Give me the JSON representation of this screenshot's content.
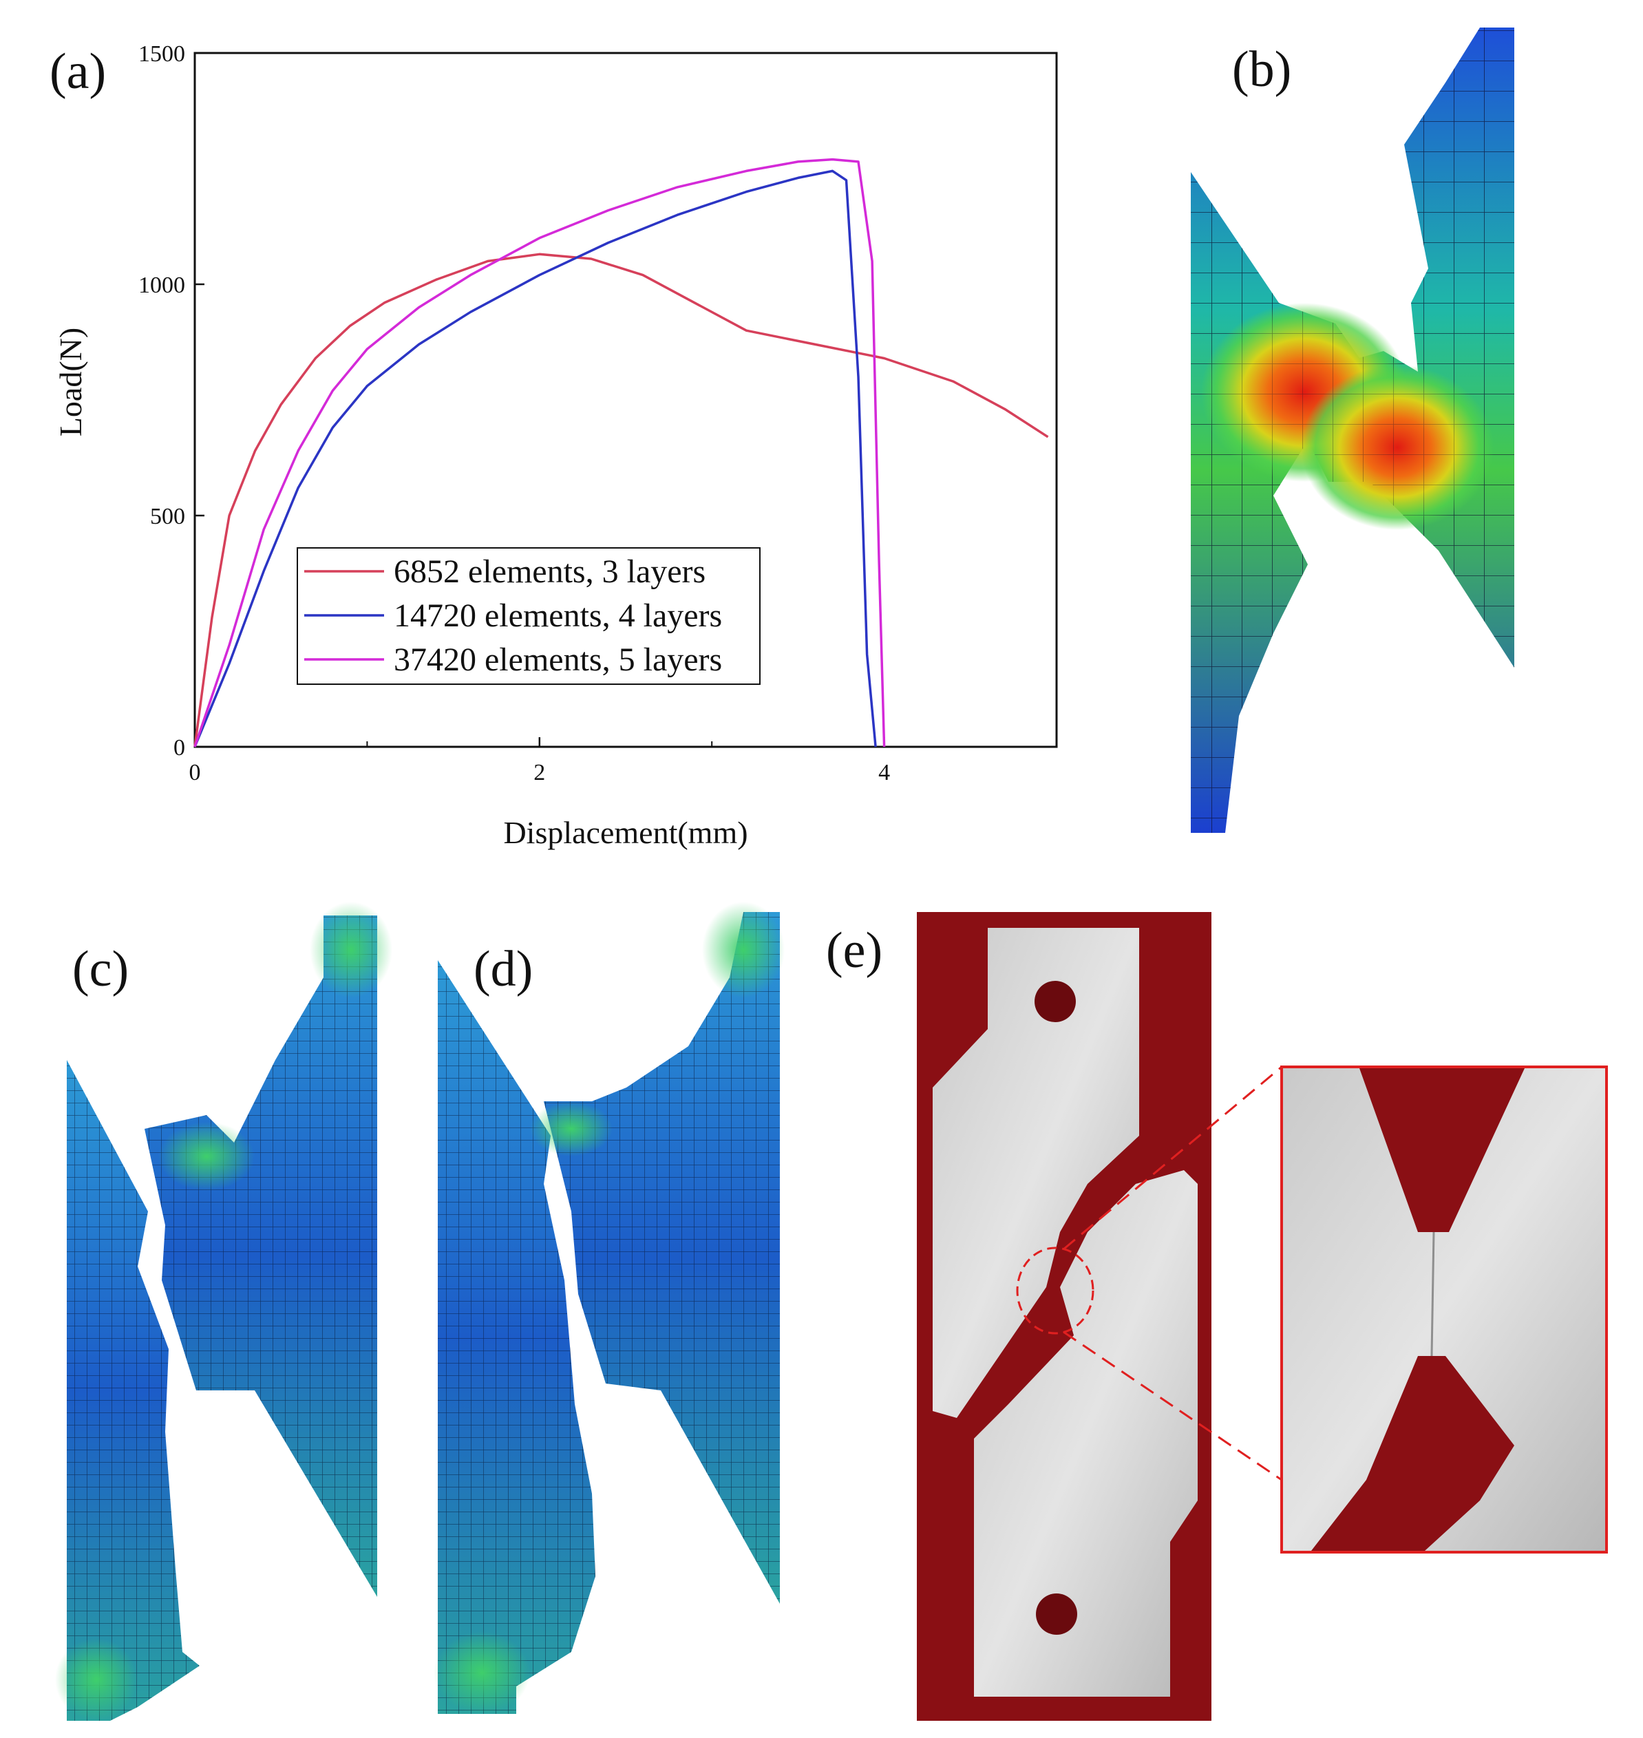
{
  "panels": {
    "a": "(a)",
    "b": "(b)",
    "c": "(c)",
    "d": "(d)",
    "e": "(e)"
  },
  "colors": {
    "series_red": "#d6405a",
    "series_blue": "#2b35c4",
    "series_magenta": "#d42ad8",
    "background_red": "#8a0f14",
    "zoom_frame": "#e02020"
  },
  "chart_data": {
    "type": "line",
    "title": "",
    "xlabel": "Displacement(mm)",
    "ylabel": "Load(N)",
    "xlim": [
      0,
      5
    ],
    "ylim": [
      0,
      1500
    ],
    "xticks": [
      0,
      2,
      4
    ],
    "xticks_minor": [
      1,
      3
    ],
    "yticks": [
      0,
      500,
      1000,
      1500
    ],
    "legend_position": "lower-center",
    "grid": false,
    "series": [
      {
        "name": "6852 elements, 3 layers",
        "color": "#d6405a",
        "x": [
          0,
          0.1,
          0.2,
          0.35,
          0.5,
          0.7,
          0.9,
          1.1,
          1.4,
          1.7,
          2.0,
          2.3,
          2.6,
          2.9,
          3.2,
          3.6,
          4.0,
          4.4,
          4.7,
          4.95
        ],
        "y": [
          0,
          280,
          500,
          640,
          740,
          840,
          910,
          960,
          1010,
          1050,
          1065,
          1055,
          1020,
          960,
          900,
          870,
          840,
          790,
          730,
          670
        ]
      },
      {
        "name": "14720 elements, 4 layers",
        "color": "#2b35c4",
        "x": [
          0,
          0.2,
          0.4,
          0.6,
          0.8,
          1.0,
          1.3,
          1.6,
          2.0,
          2.4,
          2.8,
          3.2,
          3.5,
          3.7,
          3.78,
          3.85,
          3.9,
          3.95
        ],
        "y": [
          0,
          180,
          380,
          560,
          690,
          780,
          870,
          940,
          1020,
          1090,
          1150,
          1200,
          1230,
          1245,
          1225,
          800,
          200,
          0
        ]
      },
      {
        "name": "37420 elements, 5 layers",
        "color": "#d42ad8",
        "x": [
          0,
          0.2,
          0.4,
          0.6,
          0.8,
          1.0,
          1.3,
          1.6,
          2.0,
          2.4,
          2.8,
          3.2,
          3.5,
          3.7,
          3.85,
          3.93,
          3.97,
          4.0
        ],
        "y": [
          0,
          220,
          470,
          640,
          770,
          860,
          950,
          1020,
          1100,
          1160,
          1210,
          1245,
          1265,
          1270,
          1265,
          1050,
          400,
          0
        ]
      }
    ]
  }
}
